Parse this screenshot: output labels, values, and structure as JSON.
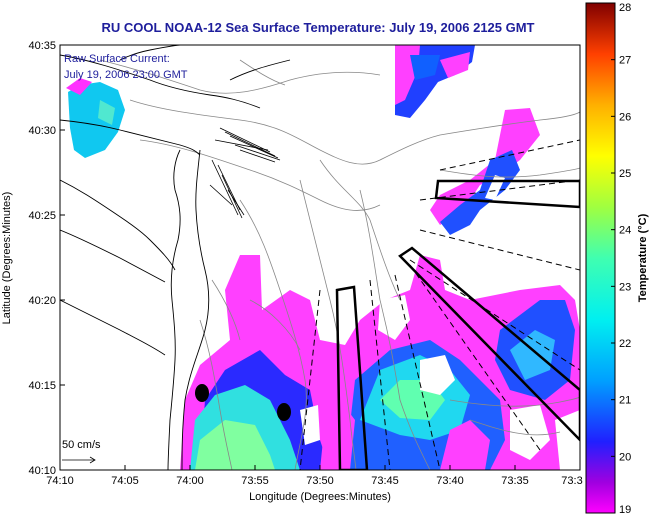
{
  "title": "RU COOL  NOAA-12  Sea Surface Temperature:  July 19, 2006 2125 GMT",
  "annotation": {
    "line1": "Raw Surface Current:",
    "line2": "July 19, 2006 23:00 GMT"
  },
  "scale_label": "50 cm/s",
  "x_axis": {
    "title": "Longitude (Degrees:Minutes)",
    "ticks": [
      "74:10",
      "74:05",
      "74:00",
      "73:55",
      "73:50",
      "73:45",
      "73:40",
      "73:35",
      "73:3"
    ]
  },
  "y_axis": {
    "title": "Latitude (Degrees:Minutes)",
    "ticks": [
      "40:35",
      "40:30",
      "40:25",
      "40:20",
      "40:15",
      "40:10"
    ]
  },
  "colorbar": {
    "title": "Temperature (°C)",
    "ticks": [
      "28",
      "27",
      "26",
      "25",
      "24",
      "23",
      "22",
      "21",
      "20",
      "19"
    ],
    "min": 19,
    "max": 28
  },
  "colors": {
    "title": "#1e1e9c",
    "land": "#ffffff",
    "frame": "#000000"
  }
}
